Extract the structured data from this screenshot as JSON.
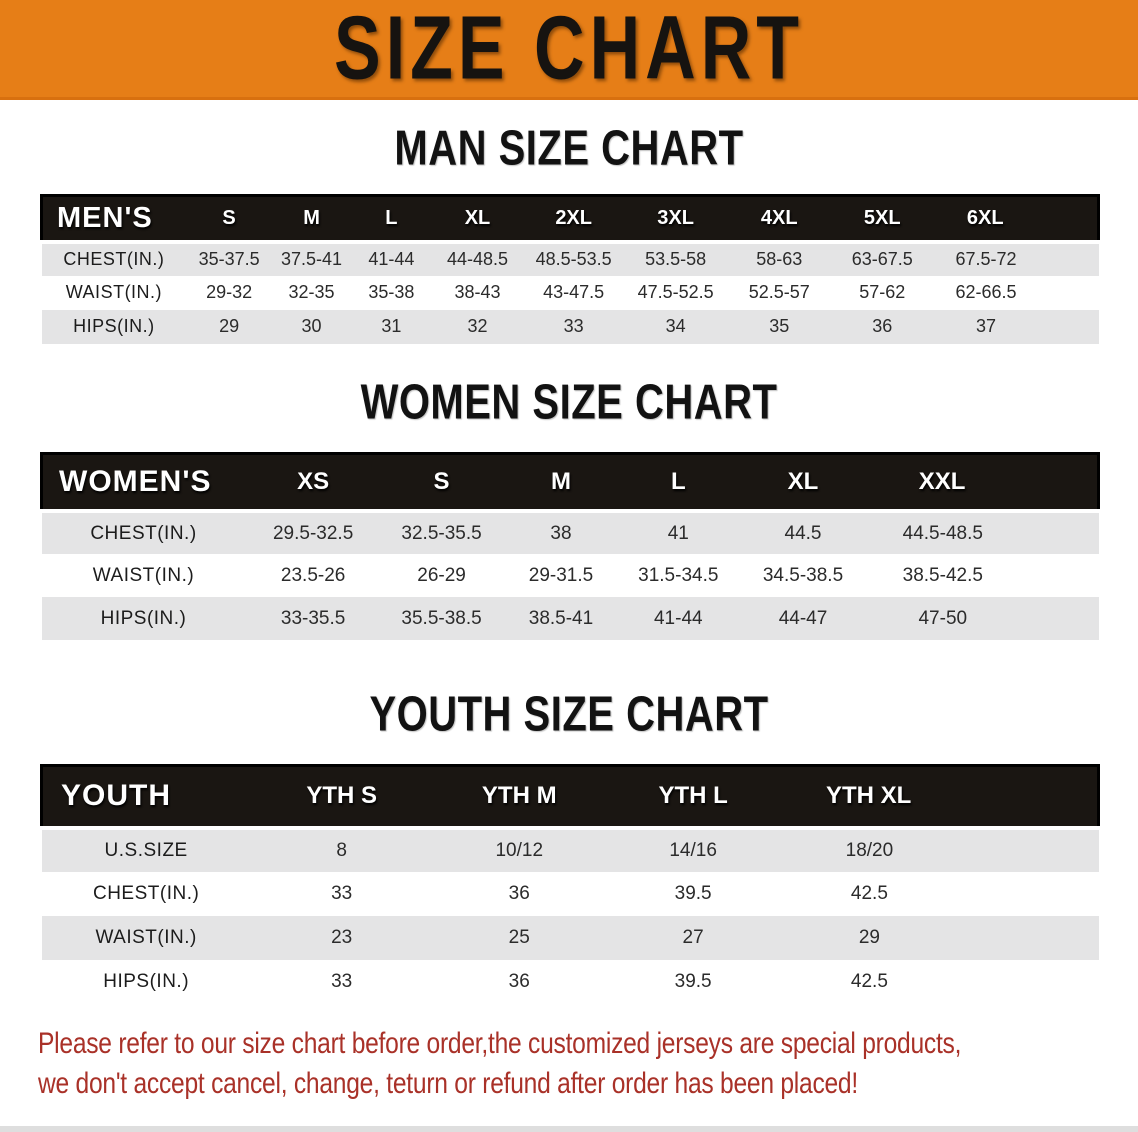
{
  "banner": {
    "title": "SIZE CHART",
    "bg_color": "#E67E17",
    "text_color": "#161310"
  },
  "sections": [
    {
      "title": "MAN SIZE CHART",
      "header_label": "MEN'S",
      "columns": [
        "S",
        "M",
        "L",
        "XL",
        "2XL",
        "3XL",
        "4XL",
        "5XL",
        "6XL"
      ],
      "rows": [
        {
          "label": "CHEST(IN.)",
          "values": [
            "35-37.5",
            "37.5-41",
            "41-44",
            "44-48.5",
            "48.5-53.5",
            "53.5-58",
            "58-63",
            "63-67.5",
            "67.5-72"
          ]
        },
        {
          "label": "WAIST(IN.)",
          "values": [
            "29-32",
            "32-35",
            "35-38",
            "38-43",
            "43-47.5",
            "47.5-52.5",
            "52.5-57",
            "57-62",
            "62-66.5"
          ]
        },
        {
          "label": "HIPS(IN.)",
          "values": [
            "29",
            "30",
            "31",
            "32",
            "33",
            "34",
            "35",
            "36",
            "37"
          ]
        }
      ]
    },
    {
      "title": "WOMEN SIZE CHART",
      "header_label": "WOMEN'S",
      "columns": [
        "XS",
        "S",
        "M",
        "L",
        "XL",
        "XXL"
      ],
      "rows": [
        {
          "label": "CHEST(IN.)",
          "values": [
            "29.5-32.5",
            "32.5-35.5",
            "38",
            "41",
            "44.5",
            "44.5-48.5"
          ]
        },
        {
          "label": "WAIST(IN.)",
          "values": [
            "23.5-26",
            "26-29",
            "29-31.5",
            "31.5-34.5",
            "34.5-38.5",
            "38.5-42.5"
          ]
        },
        {
          "label": "HIPS(IN.)",
          "values": [
            "33-35.5",
            "35.5-38.5",
            "38.5-41",
            "41-44",
            "44-47",
            "47-50"
          ]
        }
      ]
    },
    {
      "title": "YOUTH SIZE CHART",
      "header_label": "YOUTH",
      "columns": [
        "YTH S",
        "YTH M",
        "YTH L",
        "YTH XL"
      ],
      "rows": [
        {
          "label": "U.S.SIZE",
          "values": [
            "8",
            "10/12",
            "14/16",
            "18/20"
          ]
        },
        {
          "label": "CHEST(IN.)",
          "values": [
            "33",
            "36",
            "39.5",
            "42.5"
          ]
        },
        {
          "label": "WAIST(IN.)",
          "values": [
            "23",
            "25",
            "27",
            "29"
          ]
        },
        {
          "label": "HIPS(IN.)",
          "values": [
            "33",
            "36",
            "39.5",
            "42.5"
          ]
        }
      ]
    }
  ],
  "disclaimer": {
    "line1": "Please refer to our size chart before order,the customized jerseys are special products,",
    "line2": "we don't accept cancel, change, teturn or refund after order has been placed!",
    "color": "#A93128"
  }
}
